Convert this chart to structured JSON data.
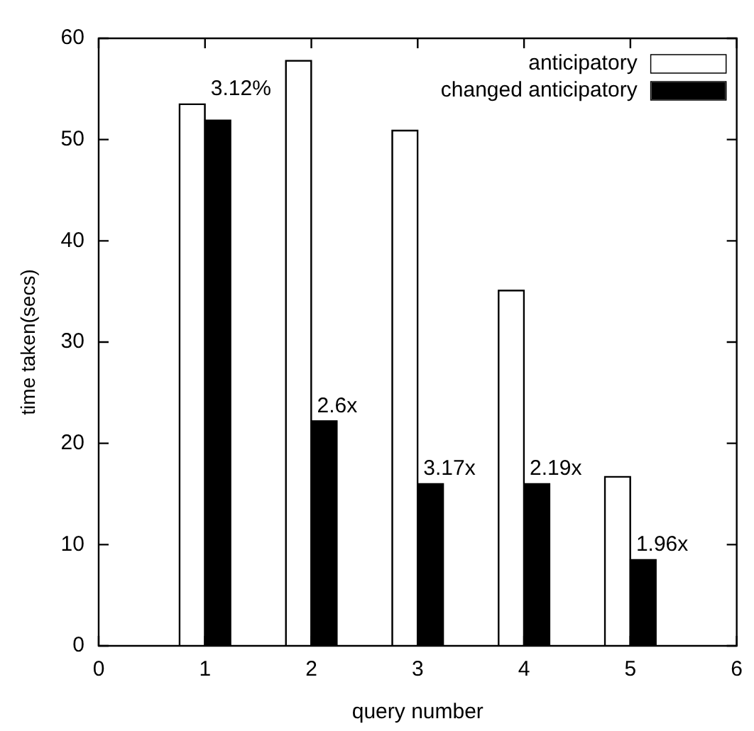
{
  "chart_data": {
    "type": "bar",
    "xlabel": "query number",
    "ylabel": "time taken(secs)",
    "x": [
      1,
      2,
      3,
      4,
      5
    ],
    "series": [
      {
        "name": "anticipatory",
        "color": "#ffffff",
        "values": [
          53.5,
          57.8,
          50.9,
          35.1,
          16.7
        ]
      },
      {
        "name": "changed anticipatory",
        "color": "#000000",
        "values": [
          51.9,
          22.2,
          16.0,
          16.0,
          8.5
        ]
      }
    ],
    "xlim": [
      0,
      6
    ],
    "xticks": [
      0,
      1,
      2,
      3,
      4,
      5,
      6
    ],
    "ylim": [
      0,
      60
    ],
    "yticks": [
      0,
      10,
      20,
      30,
      40,
      50,
      60
    ],
    "grid": false,
    "legend": "top right",
    "annotations": [
      {
        "text": "3.12%",
        "x": 1,
        "y": 53.5
      },
      {
        "text": "2.6x",
        "x": 2,
        "y": 22.2
      },
      {
        "text": "3.17x",
        "x": 3,
        "y": 16.0
      },
      {
        "text": "2.19x",
        "x": 4,
        "y": 16.0
      },
      {
        "text": "1.96x",
        "x": 5,
        "y": 8.5
      }
    ]
  }
}
